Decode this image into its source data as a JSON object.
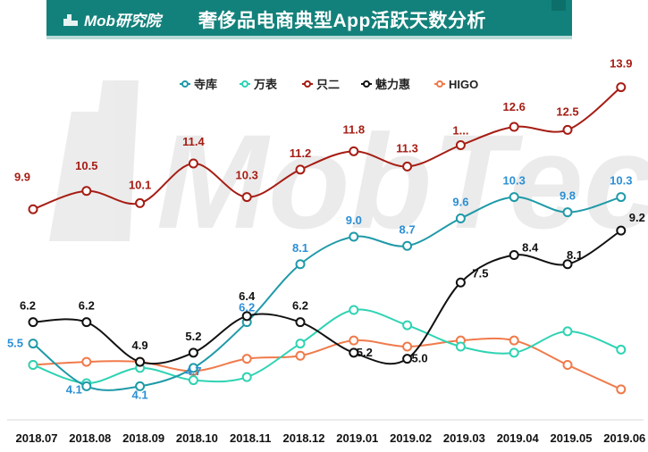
{
  "header": {
    "brand": "Mob研究院",
    "title": "奢侈品电商典型App活跃天数分析"
  },
  "watermark": "MobTech",
  "chart_data": {
    "type": "line",
    "title": "奢侈品电商典型App活跃天数分析",
    "xlabel": "",
    "ylabel": "",
    "categories": [
      "2018.07",
      "2018.08",
      "2018.09",
      "2018.10",
      "2018.11",
      "2018.12",
      "2019.01",
      "2019.02",
      "2019.03",
      "2019.04",
      "2019.05",
      "2019.06"
    ],
    "ylim": [
      3,
      15
    ],
    "grid": false,
    "legend_position": "top-center",
    "series": [
      {
        "name": "寺库",
        "color": "#1f9aa8",
        "label_color": "#2b8fd6",
        "values": [
          5.5,
          4.1,
          4.1,
          4.7,
          6.2,
          8.1,
          9.0,
          8.7,
          9.6,
          10.3,
          9.8,
          10.3
        ],
        "labels": [
          "5.5",
          "4.1",
          "4.1",
          "4.7",
          "6.2",
          "8.1",
          "9.0",
          "8.7",
          "9.6",
          "10.3",
          "9.8",
          "10.3"
        ]
      },
      {
        "name": "万表",
        "color": "#2fd3b3",
        "label_color": "#2fd3b3",
        "values": [
          4.8,
          4.2,
          4.7,
          4.3,
          4.4,
          5.5,
          6.6,
          6.1,
          5.4,
          5.2,
          5.9,
          5.3
        ],
        "labels": []
      },
      {
        "name": "只二",
        "color": "#a61d14",
        "label_color": "#a61d14",
        "values": [
          9.9,
          10.5,
          10.1,
          11.4,
          10.3,
          11.2,
          11.8,
          11.3,
          12.0,
          12.6,
          12.5,
          13.9
        ],
        "labels": [
          "9.9",
          "10.5",
          "10.1",
          "11.4",
          "10.3",
          "11.2",
          "11.8",
          "11.3",
          "1...",
          "12.6",
          "12.5",
          "13.9"
        ]
      },
      {
        "name": "魅力惠",
        "color": "#111111",
        "label_color": "#111111",
        "values": [
          6.2,
          6.2,
          4.9,
          5.2,
          6.4,
          6.2,
          5.2,
          5.0,
          7.5,
          8.4,
          8.1,
          9.2
        ],
        "labels": [
          "6.2",
          "6.2",
          "4.9",
          "5.2",
          "6.4",
          "6.2",
          "5.2",
          "5.0",
          "7.5",
          "8.4",
          "8.1",
          "9.2"
        ]
      },
      {
        "name": "HIGO",
        "color": "#f07a4a",
        "label_color": "#f07a4a",
        "values": [
          4.8,
          4.9,
          4.9,
          4.6,
          5.0,
          5.1,
          5.6,
          5.4,
          5.6,
          5.6,
          4.8,
          4.0
        ],
        "labels": []
      }
    ]
  }
}
